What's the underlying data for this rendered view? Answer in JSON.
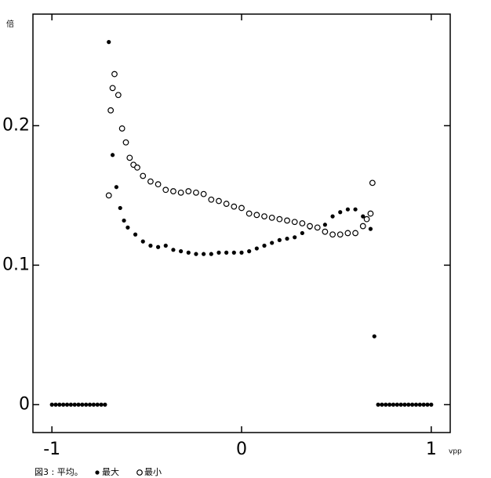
{
  "chart_data": {
    "type": "scatter",
    "caption": "図3 : 平均。",
    "ylabel": "倍",
    "xlabel": "vpp",
    "xlim": [
      -1.1,
      1.1
    ],
    "ylim": [
      -0.02,
      0.28
    ],
    "xticks": [
      -1,
      0,
      1
    ],
    "yticks": [
      0,
      0.1,
      0.2
    ],
    "series": [
      {
        "name": "最大",
        "marker": "filled",
        "color": "#000000",
        "x": [
          -1,
          -0.98,
          -0.96,
          -0.94,
          -0.92,
          -0.9,
          -0.88,
          -0.86,
          -0.84,
          -0.82,
          -0.8,
          -0.78,
          -0.76,
          -0.74,
          -0.72,
          -0.7,
          -0.68,
          -0.66,
          -0.64,
          -0.62,
          -0.6,
          -0.56,
          -0.52,
          -0.48,
          -0.44,
          -0.4,
          -0.36,
          -0.32,
          -0.28,
          -0.24,
          -0.2,
          -0.16,
          -0.12,
          -0.08,
          -0.04,
          0,
          0.04,
          0.08,
          0.12,
          0.16,
          0.2,
          0.24,
          0.28,
          0.32,
          0.36,
          0.4,
          0.44,
          0.48,
          0.52,
          0.56,
          0.6,
          0.64,
          0.68,
          0.7,
          0.72,
          0.74,
          0.76,
          0.78,
          0.8,
          0.82,
          0.84,
          0.86,
          0.88,
          0.9,
          0.92,
          0.94,
          0.96,
          0.98,
          1
        ],
        "values": [
          0,
          0,
          0,
          0,
          0,
          0,
          0,
          0,
          0,
          0,
          0,
          0,
          0,
          0,
          0,
          0.26,
          0.179,
          0.156,
          0.141,
          0.132,
          0.127,
          0.122,
          0.117,
          0.114,
          0.113,
          0.114,
          0.111,
          0.11,
          0.109,
          0.108,
          0.108,
          0.108,
          0.109,
          0.109,
          0.109,
          0.109,
          0.11,
          0.112,
          0.114,
          0.116,
          0.118,
          0.119,
          0.12,
          0.123,
          0.127,
          0.127,
          0.129,
          0.135,
          0.138,
          0.14,
          0.14,
          0.135,
          0.126,
          0.049,
          0,
          0,
          0,
          0,
          0,
          0,
          0,
          0,
          0,
          0,
          0,
          0,
          0,
          0,
          0
        ]
      },
      {
        "name": "最小",
        "marker": "open",
        "color": "#000000",
        "x": [
          -0.7,
          -0.69,
          -0.68,
          -0.67,
          -0.65,
          -0.63,
          -0.61,
          -0.59,
          -0.57,
          -0.55,
          -0.52,
          -0.48,
          -0.44,
          -0.4,
          -0.36,
          -0.32,
          -0.28,
          -0.24,
          -0.2,
          -0.16,
          -0.12,
          -0.08,
          -0.04,
          0,
          0.04,
          0.08,
          0.12,
          0.16,
          0.2,
          0.24,
          0.28,
          0.32,
          0.36,
          0.4,
          0.44,
          0.48,
          0.52,
          0.56,
          0.6,
          0.64,
          0.66,
          0.68,
          0.69
        ],
        "values": [
          0.15,
          0.211,
          0.227,
          0.237,
          0.222,
          0.198,
          0.188,
          0.177,
          0.172,
          0.17,
          0.164,
          0.16,
          0.158,
          0.154,
          0.153,
          0.152,
          0.153,
          0.152,
          0.151,
          0.147,
          0.146,
          0.144,
          0.142,
          0.141,
          0.137,
          0.136,
          0.135,
          0.134,
          0.133,
          0.132,
          0.131,
          0.13,
          0.128,
          0.127,
          0.124,
          0.122,
          0.122,
          0.123,
          0.123,
          0.128,
          0.133,
          0.137,
          0.159
        ]
      }
    ]
  }
}
